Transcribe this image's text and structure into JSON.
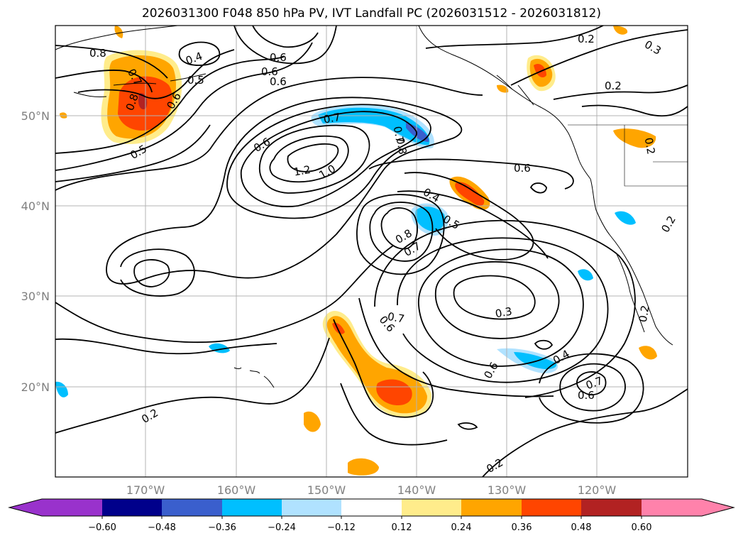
{
  "title": "2026031300 F048 850 hPa PV, IVT Landfall PC (2026031512 - 2026031812)",
  "map": {
    "lon_ticks": [
      "170°W",
      "160°W",
      "150°W",
      "140°W",
      "130°W",
      "120°W"
    ],
    "lat_ticks": [
      "50°N",
      "40°N",
      "30°N",
      "20°N"
    ],
    "contour_labels": [
      "0.8",
      "0.7",
      "0.8",
      "0.6",
      "0.5",
      "0.4",
      "0.5",
      "0.6",
      "0.6",
      "0.6",
      "0.7",
      "1.2",
      "1.0",
      "0.6",
      "0.7",
      "0.8",
      "0.4",
      "0.5",
      "0.8",
      "0.7",
      "0.6",
      "0.6",
      "0.7",
      "0.3",
      "0.6",
      "0.4",
      "0.6",
      "0.7",
      "0.2",
      "0.2",
      "0.2",
      "0.3",
      "0.2",
      "0.2",
      "0.2",
      "0.2"
    ]
  },
  "colorbar": {
    "colors": [
      "#9932cc",
      "#00008b",
      "#3a5fcd",
      "#00bfff",
      "#b0e2ff",
      "#ffffff",
      "#ffec8b",
      "#ffa500",
      "#ff4500",
      "#b22222",
      "#ff82ab"
    ],
    "tick_labels": [
      "−0.60",
      "−0.48",
      "−0.36",
      "−0.24",
      "−0.12",
      "0.12",
      "0.24",
      "0.36",
      "0.48",
      "0.60"
    ]
  }
}
